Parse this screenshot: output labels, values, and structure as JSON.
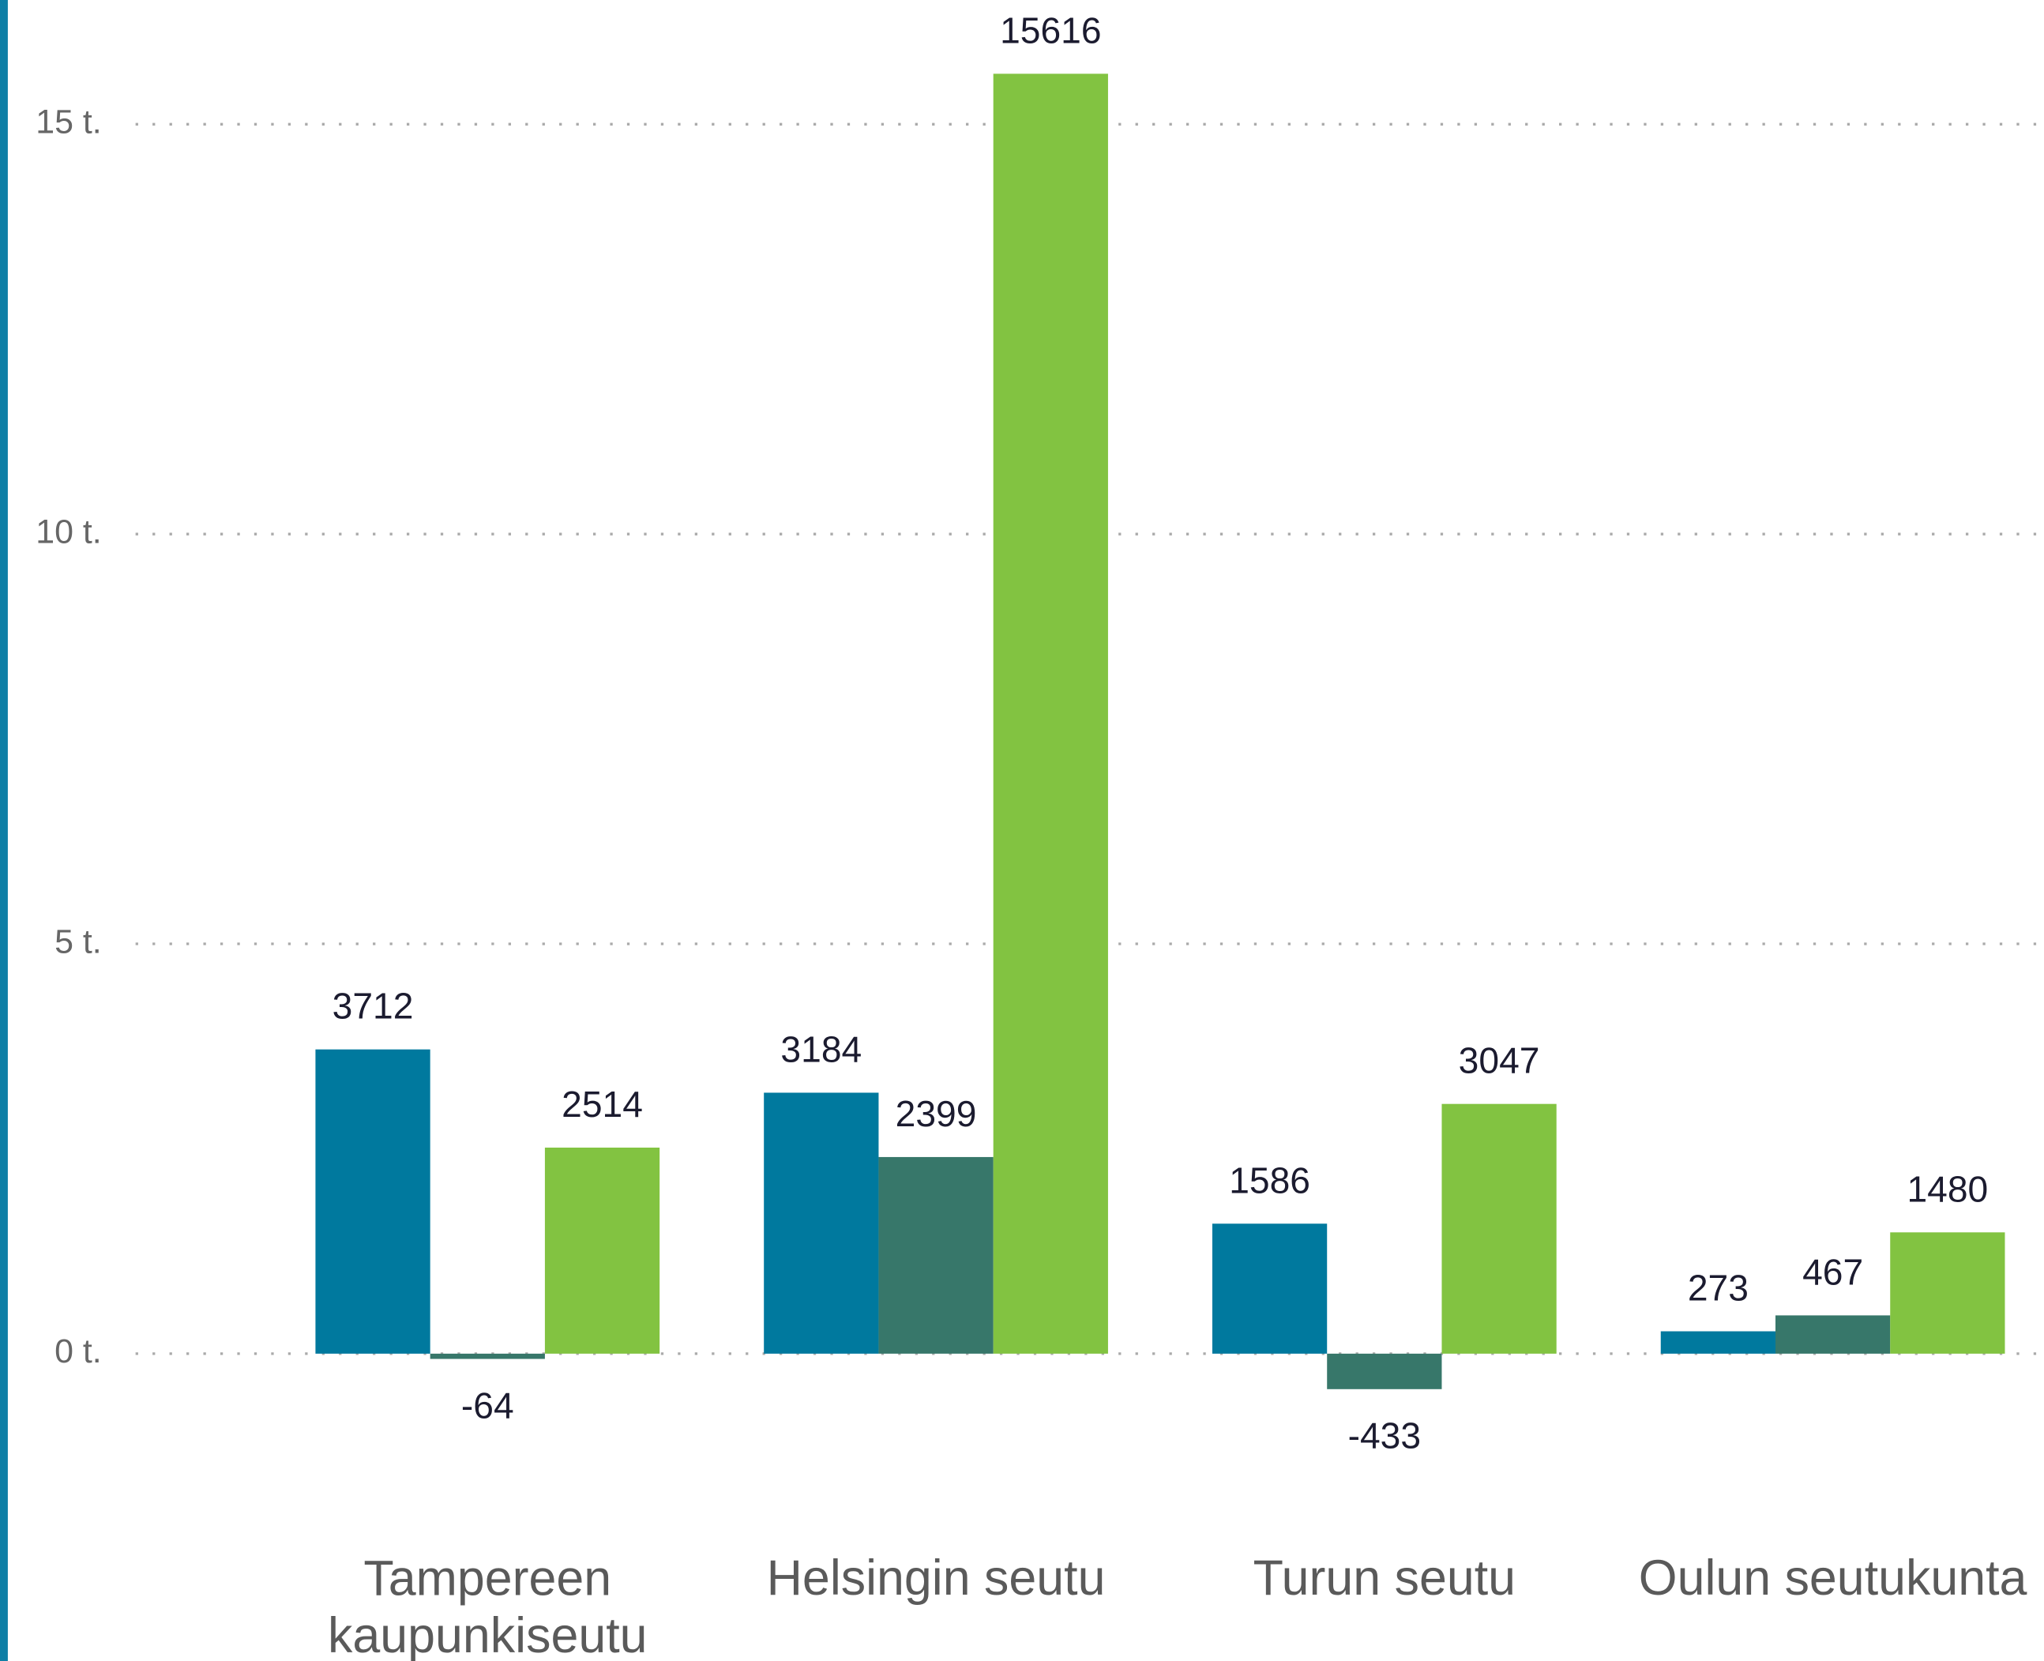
{
  "chart_data": {
    "type": "bar",
    "categories": [
      "Tampereen kaupunkiseutu",
      "Helsingin seutu",
      "Turun seutu",
      "Oulun seutukunta"
    ],
    "series": [
      {
        "color": "#00799e",
        "values": [
          3712,
          3184,
          1586,
          273
        ]
      },
      {
        "color": "#37776a",
        "values": [
          -64,
          2399,
          -433,
          467
        ]
      },
      {
        "color": "#82c341",
        "values": [
          2514,
          15616,
          3047,
          1480
        ]
      }
    ],
    "ylim": [
      -2000,
      16500
    ],
    "yticks": [
      {
        "value": 0,
        "label": "0 t."
      },
      {
        "value": 5000,
        "label": "5 t."
      },
      {
        "value": 10000,
        "label": "10 t."
      },
      {
        "value": 15000,
        "label": "15 t."
      }
    ],
    "grid": true
  }
}
